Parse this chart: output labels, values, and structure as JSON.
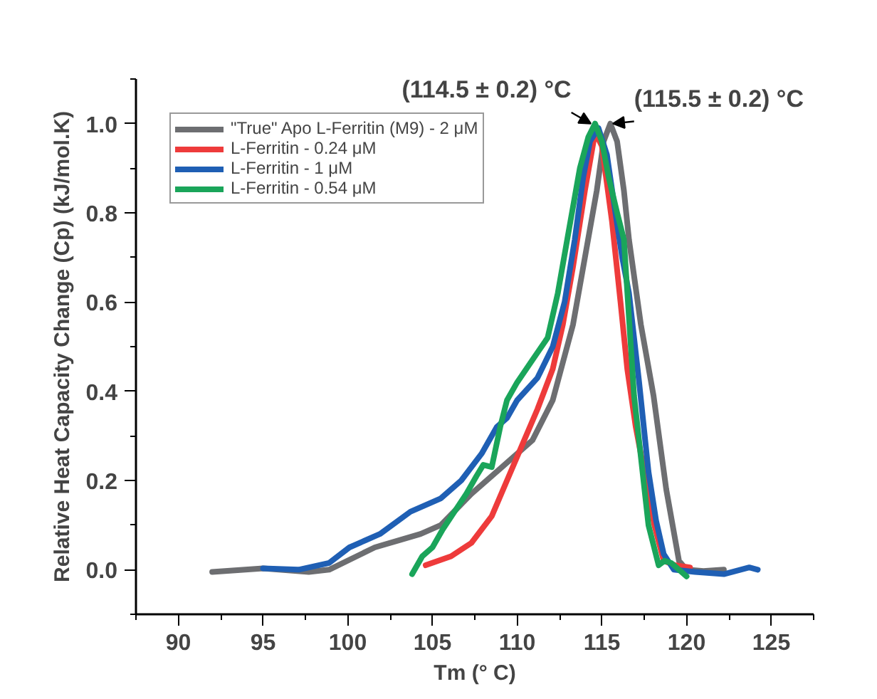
{
  "chart_data": {
    "type": "line",
    "xlabel": "Tm (° C)",
    "ylabel": "Relative Heat Capacity Change (Cp) (kJ/mol.K)",
    "xlim": [
      87.5,
      127.5
    ],
    "ylim": [
      -0.1,
      1.1
    ],
    "xticks": [
      90,
      95,
      100,
      105,
      110,
      115,
      120,
      125
    ],
    "yticks": [
      {
        "value": 0,
        "label": "0.0"
      },
      0.2,
      0.4,
      0.6,
      0.8,
      {
        "value": 1,
        "label": "1.0"
      }
    ],
    "grid": false,
    "legend": "top left",
    "marker": "none",
    "line_style": "solid",
    "annotations": [
      {
        "text": "(114.5 ± 0.2) °C",
        "x": 114.5,
        "y": 1.0
      },
      {
        "text": "(115.5 ± 0.2) °C",
        "x": 115.5,
        "y": 1.0
      }
    ],
    "series": [
      {
        "name": "\"True\" Apo L-Ferritin (M9) - 2 μM",
        "color": "#6d6e71",
        "x": [
          92.0,
          95.0,
          97.7,
          98.9,
          101.6,
          104.3,
          105.5,
          107.3,
          109.1,
          110.9,
          112.1,
          113.3,
          114.0,
          114.7,
          115.1,
          115.5,
          115.9,
          116.3,
          116.6,
          117.3,
          118.05,
          118.8,
          119.55,
          120.0,
          121.0,
          122.2
        ],
        "values": [
          -0.005,
          0.003,
          -0.005,
          0.0,
          0.05,
          0.08,
          0.1,
          0.17,
          0.23,
          0.29,
          0.38,
          0.55,
          0.7,
          0.85,
          0.96,
          1.0,
          0.96,
          0.85,
          0.74,
          0.55,
          0.39,
          0.18,
          0.02,
          0.0,
          -0.003,
          0.0
        ]
      },
      {
        "name": "L-Ferritin - 0.24 μM",
        "color": "#ee3b3b",
        "x": [
          104.6,
          106.1,
          107.3,
          108.5,
          109.4,
          110.3,
          111.2,
          112.1,
          112.7,
          113.3,
          114.0,
          114.6,
          115.0,
          115.6,
          116.1,
          116.5,
          117.0,
          117.5,
          118.1,
          118.65,
          119.3,
          120.2
        ],
        "values": [
          0.01,
          0.03,
          0.06,
          0.12,
          0.2,
          0.28,
          0.36,
          0.45,
          0.55,
          0.68,
          0.85,
          0.98,
          0.95,
          0.78,
          0.6,
          0.45,
          0.32,
          0.22,
          0.1,
          0.02,
          0.01,
          0.005
        ]
      },
      {
        "name": "L-Ferritin - 1 μM",
        "color": "#1f5fb4",
        "x": [
          95.0,
          97.1,
          98.9,
          100.1,
          101.9,
          103.7,
          105.5,
          106.7,
          107.9,
          108.8,
          109.4,
          110.0,
          111.2,
          112.1,
          112.8,
          113.4,
          113.9,
          114.3,
          114.8,
          115.3,
          115.8,
          116.2,
          116.6,
          117.2,
          117.75,
          118.2,
          118.65,
          119.25,
          120.5,
          122.2,
          123.7,
          124.2
        ],
        "values": [
          0.003,
          0.0,
          0.015,
          0.05,
          0.08,
          0.13,
          0.16,
          0.2,
          0.26,
          0.32,
          0.34,
          0.38,
          0.43,
          0.5,
          0.6,
          0.74,
          0.88,
          0.96,
          0.99,
          0.93,
          0.8,
          0.7,
          0.62,
          0.42,
          0.22,
          0.11,
          0.035,
          0.0,
          -0.005,
          -0.01,
          0.005,
          0.0
        ]
      },
      {
        "name": "L-Ferritin - 0.54 μM",
        "color": "#1aa55a",
        "x": [
          103.8,
          104.4,
          105.0,
          105.6,
          106.3,
          107.0,
          107.6,
          108.0,
          108.5,
          109.0,
          109.4,
          110.0,
          110.9,
          111.8,
          112.4,
          113.0,
          113.7,
          114.2,
          114.6,
          115.0,
          115.4,
          115.9,
          116.3,
          116.9,
          117.75,
          118.35,
          118.7,
          119.1,
          120.0
        ],
        "values": [
          -0.01,
          0.03,
          0.05,
          0.09,
          0.13,
          0.17,
          0.21,
          0.235,
          0.23,
          0.32,
          0.38,
          0.42,
          0.47,
          0.52,
          0.62,
          0.75,
          0.9,
          0.97,
          1.0,
          0.96,
          0.88,
          0.8,
          0.74,
          0.39,
          0.1,
          0.01,
          0.02,
          0.015,
          -0.015
        ]
      }
    ]
  }
}
